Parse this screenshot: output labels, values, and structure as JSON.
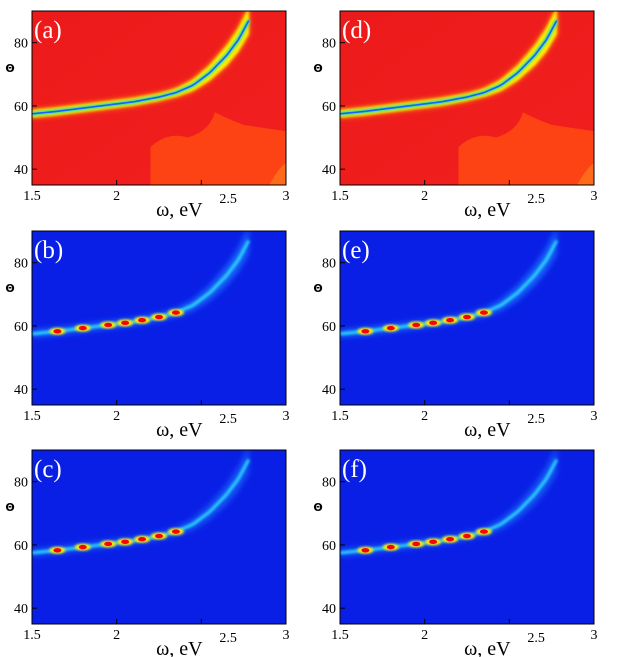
{
  "figure": {
    "colors": {
      "hot_background": "#ee1c1c",
      "cool_background": "#0a1fe6",
      "ridge_core": "#ff0000",
      "ridge_mid": "#ffee00",
      "ridge_low": "#22ddaa"
    }
  },
  "chart_data": [
    {
      "id": "a",
      "type": "heatmap",
      "label": "(a)",
      "colormap": "red-background",
      "xlabel": "ω, eV",
      "ylabel": "Θ",
      "xlim": [
        1.5,
        3.0
      ],
      "ylim": [
        35,
        90
      ],
      "xticks": [
        "1.5",
        "2",
        "2.5",
        "3"
      ],
      "yticks": [
        "40",
        "60",
        "80"
      ],
      "ridge": {
        "x": [
          1.5,
          1.65,
          1.8,
          1.95,
          2.1,
          2.25,
          2.35,
          2.45,
          2.55,
          2.65,
          2.72,
          2.78
        ],
        "y": [
          57.5,
          58.3,
          59.3,
          60.3,
          61.3,
          62.8,
          64.2,
          66.5,
          70.5,
          76.0,
          81.0,
          87.0
        ]
      }
    },
    {
      "id": "b",
      "type": "heatmap",
      "label": "(b)",
      "colormap": "blue-background",
      "xlabel": "ω, eV",
      "ylabel": "Θ",
      "xlim": [
        1.5,
        3.0
      ],
      "ylim": [
        35,
        90
      ],
      "xticks": [
        "1.5",
        "2",
        "2.5",
        "3"
      ],
      "yticks": [
        "40",
        "60",
        "80"
      ],
      "ridge": {
        "x": [
          1.5,
          1.65,
          1.8,
          1.95,
          2.1,
          2.25,
          2.35,
          2.45,
          2.55,
          2.65,
          2.72,
          2.78
        ],
        "y": [
          57.5,
          58.3,
          59.3,
          60.3,
          61.3,
          62.8,
          64.2,
          66.5,
          70.5,
          76.0,
          81.0,
          87.0
        ]
      }
    },
    {
      "id": "c",
      "type": "heatmap",
      "label": "(c)",
      "colormap": "blue-background",
      "xlabel": "ω, eV",
      "ylabel": "Θ",
      "xlim": [
        1.5,
        3.0
      ],
      "ylim": [
        35,
        90
      ],
      "xticks": [
        "1.5",
        "2",
        "2.5",
        "3"
      ],
      "yticks": [
        "40",
        "60",
        "80"
      ],
      "ridge": {
        "x": [
          1.5,
          1.65,
          1.8,
          1.95,
          2.1,
          2.25,
          2.35,
          2.45,
          2.55,
          2.65,
          2.72,
          2.78
        ],
        "y": [
          57.5,
          58.3,
          59.3,
          60.3,
          61.3,
          62.8,
          64.2,
          66.5,
          70.5,
          76.0,
          81.0,
          87.0
        ]
      }
    },
    {
      "id": "d",
      "type": "heatmap",
      "label": "(d)",
      "colormap": "red-background",
      "xlabel": "ω, eV",
      "ylabel": "Θ",
      "xlim": [
        1.5,
        3.0
      ],
      "ylim": [
        35,
        90
      ],
      "xticks": [
        "1.5",
        "2",
        "2.5",
        "3"
      ],
      "yticks": [
        "40",
        "60",
        "80"
      ],
      "ridge": {
        "x": [
          1.5,
          1.65,
          1.8,
          1.95,
          2.1,
          2.25,
          2.35,
          2.45,
          2.55,
          2.65,
          2.72,
          2.78
        ],
        "y": [
          57.5,
          58.3,
          59.3,
          60.3,
          61.3,
          62.8,
          64.2,
          66.5,
          70.5,
          76.0,
          81.0,
          87.0
        ]
      }
    },
    {
      "id": "e",
      "type": "heatmap",
      "label": "(e)",
      "colormap": "blue-background",
      "xlabel": "ω, eV",
      "ylabel": "Θ",
      "xlim": [
        1.5,
        3.0
      ],
      "ylim": [
        35,
        90
      ],
      "xticks": [
        "1.5",
        "2",
        "2.5",
        "3"
      ],
      "yticks": [
        "40",
        "60",
        "80"
      ],
      "ridge": {
        "x": [
          1.5,
          1.65,
          1.8,
          1.95,
          2.1,
          2.25,
          2.35,
          2.45,
          2.55,
          2.65,
          2.72,
          2.78
        ],
        "y": [
          57.5,
          58.3,
          59.3,
          60.3,
          61.3,
          62.8,
          64.2,
          66.5,
          70.5,
          76.0,
          81.0,
          87.0
        ]
      }
    },
    {
      "id": "f",
      "type": "heatmap",
      "label": "(f)",
      "colormap": "blue-background",
      "xlabel": "ω, eV",
      "ylabel": "Θ",
      "xlim": [
        1.5,
        3.0
      ],
      "ylim": [
        35,
        90
      ],
      "xticks": [
        "1.5",
        "2",
        "2.5",
        "3"
      ],
      "yticks": [
        "40",
        "60",
        "80"
      ],
      "ridge": {
        "x": [
          1.5,
          1.65,
          1.8,
          1.95,
          2.1,
          2.25,
          2.35,
          2.45,
          2.55,
          2.65,
          2.72,
          2.78
        ],
        "y": [
          57.5,
          58.3,
          59.3,
          60.3,
          61.3,
          62.8,
          64.2,
          66.5,
          70.5,
          76.0,
          81.0,
          87.0
        ]
      }
    }
  ]
}
